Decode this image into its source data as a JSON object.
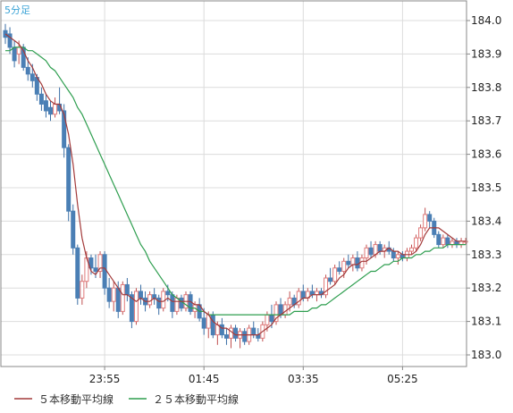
{
  "chart_data": {
    "type": "candlestick",
    "interval_label": "5分足",
    "ylim": [
      182.97,
      184.05
    ],
    "y_ticks": [
      "184.0",
      "183.9",
      "183.8",
      "183.7",
      "183.6",
      "183.5",
      "183.4",
      "183.3",
      "183.2",
      "183.1",
      "183.0"
    ],
    "x_ticks": [
      "23:55",
      "01:45",
      "03:35",
      "05:25"
    ],
    "grid": true,
    "legend_position": "bottom-left",
    "colors": {
      "up": "#e07a7a",
      "down": "#4a7fb5",
      "ma5": "#a33a3a",
      "ma25": "#2e9e4f",
      "interval_label": "#3aa3d6"
    },
    "series": [
      {
        "name": "５本移動平均線",
        "key": "ma5"
      },
      {
        "name": "２５本移動平均線",
        "key": "ma25"
      }
    ],
    "candles": [
      [
        183.97,
        183.99,
        183.93,
        183.95
      ],
      [
        183.96,
        183.98,
        183.9,
        183.92
      ],
      [
        183.92,
        183.94,
        183.86,
        183.88
      ],
      [
        183.9,
        183.94,
        183.87,
        183.92
      ],
      [
        183.92,
        183.93,
        183.85,
        183.86
      ],
      [
        183.86,
        183.89,
        183.82,
        183.84
      ],
      [
        183.84,
        183.87,
        183.8,
        183.82
      ],
      [
        183.83,
        183.84,
        183.76,
        183.78
      ],
      [
        183.78,
        183.8,
        183.73,
        183.75
      ],
      [
        183.76,
        183.78,
        183.71,
        183.73
      ],
      [
        183.74,
        183.76,
        183.7,
        183.72
      ],
      [
        183.72,
        183.77,
        183.71,
        183.75
      ],
      [
        183.75,
        183.8,
        183.72,
        183.73
      ],
      [
        183.73,
        183.75,
        183.59,
        183.62
      ],
      [
        183.62,
        183.63,
        183.4,
        183.43
      ],
      [
        183.43,
        183.45,
        183.3,
        183.32
      ],
      [
        183.32,
        183.33,
        183.15,
        183.17
      ],
      [
        183.17,
        183.24,
        183.15,
        183.22
      ],
      [
        183.22,
        183.31,
        183.2,
        183.29
      ],
      [
        183.29,
        183.3,
        183.24,
        183.26
      ],
      [
        183.26,
        183.3,
        183.23,
        183.25
      ],
      [
        183.25,
        183.31,
        183.23,
        183.3
      ],
      [
        183.3,
        183.31,
        183.18,
        183.2
      ],
      [
        183.2,
        183.23,
        183.14,
        183.16
      ],
      [
        183.16,
        183.22,
        183.13,
        183.2
      ],
      [
        183.2,
        183.22,
        183.11,
        183.13
      ],
      [
        183.13,
        183.22,
        183.12,
        183.21
      ],
      [
        183.21,
        183.23,
        183.16,
        183.18
      ],
      [
        183.18,
        183.19,
        183.08,
        183.1
      ],
      [
        183.1,
        183.2,
        183.09,
        183.19
      ],
      [
        183.19,
        183.21,
        183.15,
        183.17
      ],
      [
        183.17,
        183.19,
        183.13,
        183.15
      ],
      [
        183.15,
        183.19,
        183.14,
        183.18
      ],
      [
        183.18,
        183.2,
        183.15,
        183.17
      ],
      [
        183.17,
        183.18,
        183.12,
        183.14
      ],
      [
        183.14,
        183.2,
        183.13,
        183.19
      ],
      [
        183.19,
        183.21,
        183.16,
        183.18
      ],
      [
        183.18,
        183.19,
        183.11,
        183.13
      ],
      [
        183.13,
        183.18,
        183.12,
        183.17
      ],
      [
        183.17,
        183.18,
        183.13,
        183.14
      ],
      [
        183.14,
        183.19,
        183.13,
        183.18
      ],
      [
        183.18,
        183.19,
        183.12,
        183.13
      ],
      [
        183.13,
        183.16,
        183.11,
        183.15
      ],
      [
        183.15,
        183.17,
        183.1,
        183.11
      ],
      [
        183.11,
        183.14,
        183.06,
        183.08
      ],
      [
        183.08,
        183.13,
        183.05,
        183.12
      ],
      [
        183.12,
        183.13,
        183.05,
        183.06
      ],
      [
        183.06,
        183.1,
        183.03,
        183.09
      ],
      [
        183.09,
        183.11,
        183.05,
        183.06
      ],
      [
        183.06,
        183.08,
        183.03,
        183.05
      ],
      [
        183.05,
        183.09,
        183.02,
        183.08
      ],
      [
        183.08,
        183.09,
        183.04,
        183.05
      ],
      [
        183.05,
        183.08,
        183.02,
        183.07
      ],
      [
        183.07,
        183.08,
        183.03,
        183.04
      ],
      [
        183.04,
        183.09,
        183.03,
        183.08
      ],
      [
        183.08,
        183.1,
        183.05,
        183.06
      ],
      [
        183.06,
        183.08,
        183.04,
        183.05
      ],
      [
        183.05,
        183.1,
        183.04,
        183.09
      ],
      [
        183.09,
        183.13,
        183.07,
        183.12
      ],
      [
        183.12,
        183.15,
        183.08,
        183.1
      ],
      [
        183.1,
        183.16,
        183.09,
        183.15
      ],
      [
        183.15,
        183.17,
        183.11,
        183.12
      ],
      [
        183.12,
        183.16,
        183.11,
        183.15
      ],
      [
        183.15,
        183.19,
        183.13,
        183.17
      ],
      [
        183.17,
        183.18,
        183.14,
        183.15
      ],
      [
        183.15,
        183.2,
        183.14,
        183.19
      ],
      [
        183.19,
        183.21,
        183.16,
        183.17
      ],
      [
        183.17,
        183.2,
        183.16,
        183.19
      ],
      [
        183.19,
        183.21,
        183.17,
        183.18
      ],
      [
        183.18,
        183.2,
        183.16,
        183.19
      ],
      [
        183.19,
        183.2,
        183.17,
        183.18
      ],
      [
        183.18,
        183.24,
        183.17,
        183.23
      ],
      [
        183.23,
        183.26,
        183.21,
        183.22
      ],
      [
        183.22,
        183.27,
        183.21,
        183.26
      ],
      [
        183.26,
        183.28,
        183.24,
        183.25
      ],
      [
        183.25,
        183.29,
        183.23,
        183.28
      ],
      [
        183.28,
        183.3,
        183.26,
        183.27
      ],
      [
        183.27,
        183.3,
        183.25,
        183.29
      ],
      [
        183.29,
        183.31,
        183.25,
        183.26
      ],
      [
        183.26,
        183.3,
        183.25,
        183.29
      ],
      [
        183.29,
        183.33,
        183.27,
        183.32
      ],
      [
        183.32,
        183.34,
        183.29,
        183.3
      ],
      [
        183.3,
        183.34,
        183.29,
        183.33
      ],
      [
        183.33,
        183.34,
        183.3,
        183.31
      ],
      [
        183.31,
        183.33,
        183.29,
        183.32
      ],
      [
        183.32,
        183.34,
        183.3,
        183.31
      ],
      [
        183.31,
        183.32,
        183.28,
        183.29
      ],
      [
        183.29,
        183.31,
        183.27,
        183.3
      ],
      [
        183.3,
        183.31,
        183.28,
        183.29
      ],
      [
        183.29,
        183.32,
        183.28,
        183.31
      ],
      [
        183.31,
        183.33,
        183.3,
        183.32
      ],
      [
        183.32,
        183.36,
        183.31,
        183.35
      ],
      [
        183.35,
        183.39,
        183.34,
        183.38
      ],
      [
        183.38,
        183.44,
        183.37,
        183.42
      ],
      [
        183.42,
        183.43,
        183.38,
        183.4
      ],
      [
        183.4,
        183.41,
        183.35,
        183.36
      ],
      [
        183.36,
        183.37,
        183.32,
        183.33
      ],
      [
        183.33,
        183.36,
        183.32,
        183.35
      ],
      [
        183.35,
        183.36,
        183.32,
        183.33
      ],
      [
        183.33,
        183.35,
        183.32,
        183.34
      ],
      [
        183.34,
        183.35,
        183.32,
        183.33
      ],
      [
        183.33,
        183.35,
        183.32,
        183.34
      ],
      [
        183.34,
        183.35,
        183.33,
        183.34
      ]
    ],
    "ma5": [
      183.96,
      183.95,
      183.94,
      183.93,
      183.91,
      183.88,
      183.86,
      183.83,
      183.81,
      183.78,
      183.76,
      183.75,
      183.75,
      183.72,
      183.66,
      183.57,
      183.45,
      183.35,
      183.29,
      183.25,
      183.24,
      183.26,
      183.26,
      183.24,
      183.22,
      183.2,
      183.18,
      183.18,
      183.17,
      183.16,
      183.17,
      183.16,
      183.16,
      183.17,
      183.16,
      183.16,
      183.17,
      183.16,
      183.16,
      183.16,
      183.16,
      183.16,
      183.15,
      183.15,
      183.13,
      183.12,
      183.1,
      183.09,
      183.08,
      183.08,
      183.07,
      183.06,
      183.06,
      183.06,
      183.06,
      183.06,
      183.06,
      183.07,
      183.08,
      183.09,
      183.11,
      183.12,
      183.13,
      183.14,
      183.15,
      183.16,
      183.17,
      183.17,
      183.18,
      183.18,
      183.18,
      183.19,
      183.2,
      183.21,
      183.23,
      183.24,
      183.26,
      183.27,
      183.27,
      183.28,
      183.28,
      183.29,
      183.3,
      183.31,
      183.31,
      183.32,
      183.31,
      183.31,
      183.3,
      183.3,
      183.3,
      183.31,
      183.33,
      183.36,
      183.38,
      183.38,
      183.38,
      183.37,
      183.36,
      183.35,
      183.34,
      183.34,
      183.34
    ],
    "ma25": [
      183.91,
      183.91,
      183.92,
      183.92,
      183.92,
      183.91,
      183.91,
      183.9,
      183.89,
      183.88,
      183.86,
      183.85,
      183.83,
      183.81,
      183.79,
      183.77,
      183.74,
      183.72,
      183.69,
      183.66,
      183.63,
      183.6,
      183.57,
      183.54,
      183.51,
      183.48,
      183.45,
      183.42,
      183.39,
      183.36,
      183.33,
      183.31,
      183.28,
      183.26,
      183.24,
      183.22,
      183.2,
      183.18,
      183.17,
      183.16,
      183.15,
      183.14,
      183.14,
      183.13,
      183.13,
      183.12,
      183.12,
      183.12,
      183.12,
      183.12,
      183.12,
      183.12,
      183.12,
      183.12,
      183.12,
      183.12,
      183.12,
      183.12,
      183.12,
      183.12,
      183.12,
      183.12,
      183.12,
      183.12,
      183.13,
      183.13,
      183.13,
      183.13,
      183.14,
      183.14,
      183.15,
      183.15,
      183.16,
      183.17,
      183.18,
      183.19,
      183.2,
      183.21,
      183.22,
      183.23,
      183.24,
      183.25,
      183.25,
      183.26,
      183.27,
      183.27,
      183.28,
      183.28,
      183.29,
      183.29,
      183.29,
      183.3,
      183.3,
      183.31,
      183.31,
      183.32,
      183.32,
      183.32,
      183.33,
      183.33,
      183.33,
      183.33,
      183.33
    ]
  }
}
